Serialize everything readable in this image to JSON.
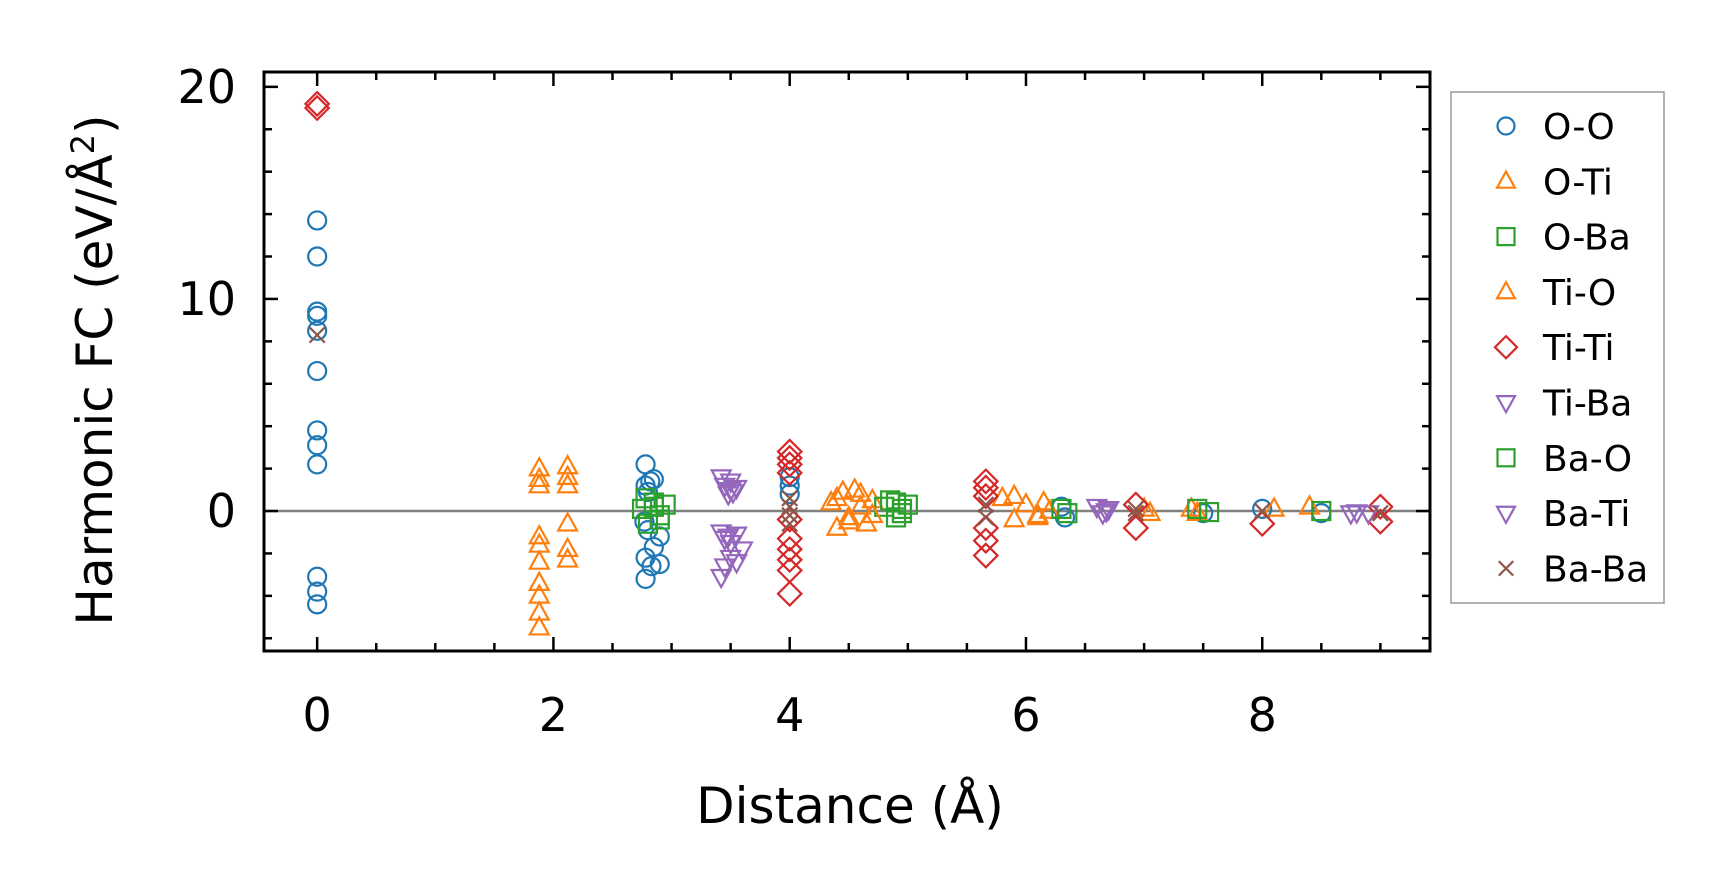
{
  "chart_data": {
    "type": "scatter",
    "xlabel": "Distance (Å)",
    "ylabel": "Harmonic FC (eV/Å",
    "ylabel_sup": "2",
    "ylabel_close": ")",
    "xlim": [
      -0.45,
      9.42
    ],
    "ylim": [
      -6.6,
      20.7
    ],
    "xticks": [
      0,
      2,
      4,
      6,
      8
    ],
    "xtick_labels": [
      "0",
      "2",
      "4",
      "6",
      "8"
    ],
    "yticks": [
      0,
      10,
      20
    ],
    "ytick_labels": [
      "0",
      "10",
      "20"
    ],
    "grid": false,
    "zero_line": true,
    "legend_position": "outside right",
    "series": [
      {
        "name": "O-O",
        "marker": "circle",
        "color": "#1f77b4",
        "points": [
          [
            0,
            13.7
          ],
          [
            0,
            12.0
          ],
          [
            0,
            9.4
          ],
          [
            0,
            9.2
          ],
          [
            0,
            8.5
          ],
          [
            0,
            6.6
          ],
          [
            0,
            3.8
          ],
          [
            0,
            3.1
          ],
          [
            0,
            2.2
          ],
          [
            0,
            -3.1
          ],
          [
            0,
            -3.8
          ],
          [
            0,
            -4.4
          ],
          [
            2.78,
            2.2
          ],
          [
            2.78,
            1.2
          ],
          [
            2.8,
            0.9
          ],
          [
            2.82,
            1.4
          ],
          [
            2.85,
            1.5
          ],
          [
            2.77,
            -0.5
          ],
          [
            2.8,
            -0.9
          ],
          [
            2.85,
            -1.7
          ],
          [
            2.9,
            -1.2
          ],
          [
            2.78,
            -2.2
          ],
          [
            2.83,
            -2.6
          ],
          [
            2.78,
            -3.2
          ],
          [
            2.9,
            -2.5
          ],
          [
            4.0,
            1.6
          ],
          [
            4.0,
            1.2
          ],
          [
            4.0,
            0.8
          ],
          [
            6.3,
            0.2
          ],
          [
            6.33,
            -0.3
          ],
          [
            7.5,
            -0.1
          ],
          [
            8.0,
            0.1
          ],
          [
            8.5,
            -0.1
          ]
        ]
      },
      {
        "name": "O-Ti",
        "marker": "triangle-up",
        "color": "#ff7f0e",
        "points": [
          [
            1.88,
            2.0
          ],
          [
            1.88,
            1.5
          ],
          [
            1.88,
            1.2
          ],
          [
            1.88,
            -1.2
          ],
          [
            1.88,
            -1.6
          ],
          [
            1.88,
            -2.4
          ],
          [
            1.88,
            -3.4
          ],
          [
            1.88,
            -4.0
          ],
          [
            1.88,
            -4.8
          ],
          [
            1.88,
            -5.5
          ],
          [
            2.12,
            2.1
          ],
          [
            2.12,
            1.6
          ],
          [
            2.12,
            1.2
          ],
          [
            2.12,
            -0.6
          ],
          [
            2.12,
            -1.8
          ],
          [
            2.12,
            -2.3
          ],
          [
            4.35,
            0.4
          ],
          [
            4.4,
            -0.8
          ],
          [
            4.45,
            0.9
          ],
          [
            4.5,
            -0.3
          ],
          [
            4.55,
            1.0
          ],
          [
            4.6,
            0.2
          ],
          [
            4.65,
            -0.6
          ],
          [
            4.7,
            0.5
          ],
          [
            5.8,
            0.6
          ],
          [
            5.9,
            -0.4
          ],
          [
            6.0,
            0.3
          ],
          [
            6.1,
            -0.2
          ],
          [
            6.15,
            0.4
          ],
          [
            6.2,
            0.0
          ],
          [
            7.0,
            0.1
          ],
          [
            7.05,
            -0.1
          ],
          [
            7.4,
            0.1
          ],
          [
            7.45,
            -0.1
          ],
          [
            8.1,
            0.1
          ],
          [
            8.4,
            0.2
          ]
        ]
      },
      {
        "name": "O-Ba",
        "marker": "square",
        "color": "#2ca02c",
        "points": [
          [
            2.75,
            0.1
          ],
          [
            2.8,
            -0.6
          ],
          [
            2.85,
            0.4
          ],
          [
            2.9,
            -0.2
          ],
          [
            2.95,
            0.3
          ],
          [
            2.78,
            0.6
          ],
          [
            4.8,
            0.2
          ],
          [
            4.85,
            0.5
          ],
          [
            4.9,
            -0.3
          ],
          [
            4.95,
            0.1
          ],
          [
            5.0,
            0.3
          ],
          [
            6.3,
            0.1
          ],
          [
            6.35,
            -0.1
          ],
          [
            7.45,
            0.1
          ],
          [
            7.55,
            -0.05
          ],
          [
            8.5,
            0.0
          ]
        ]
      },
      {
        "name": "Ti-O",
        "marker": "triangle-up",
        "color": "#ff7f0e",
        "points": [
          [
            4.4,
            0.6
          ],
          [
            4.5,
            -0.5
          ],
          [
            4.6,
            0.8
          ],
          [
            4.7,
            -0.2
          ],
          [
            5.9,
            0.7
          ],
          [
            6.1,
            -0.3
          ]
        ]
      },
      {
        "name": "Ti-Ti",
        "marker": "diamond",
        "color": "#d62728",
        "points": [
          [
            0,
            19.2
          ],
          [
            0,
            19.0
          ],
          [
            4.0,
            2.8
          ],
          [
            4.0,
            2.5
          ],
          [
            4.0,
            2.2
          ],
          [
            4.0,
            1.8
          ],
          [
            4.0,
            -0.4
          ],
          [
            4.0,
            -1.3
          ],
          [
            4.0,
            -1.8
          ],
          [
            4.0,
            -2.3
          ],
          [
            4.0,
            -2.8
          ],
          [
            4.0,
            -3.9
          ],
          [
            5.66,
            1.4
          ],
          [
            5.66,
            1.1
          ],
          [
            5.66,
            0.7
          ],
          [
            5.66,
            -0.8
          ],
          [
            5.66,
            -1.4
          ],
          [
            5.66,
            -2.1
          ],
          [
            6.93,
            0.3
          ],
          [
            6.93,
            -0.8
          ],
          [
            8.0,
            -0.6
          ],
          [
            9.0,
            0.2
          ],
          [
            9.0,
            -0.5
          ]
        ]
      },
      {
        "name": "Ti-Ba",
        "marker": "triangle-down",
        "color": "#9467bd",
        "points": [
          [
            3.42,
            1.6
          ],
          [
            3.45,
            1.2
          ],
          [
            3.48,
            0.8
          ],
          [
            3.5,
            1.4
          ],
          [
            3.52,
            0.9
          ],
          [
            3.55,
            1.1
          ],
          [
            3.42,
            -1.0
          ],
          [
            3.45,
            -1.3
          ],
          [
            3.5,
            -1.5
          ],
          [
            3.55,
            -1.1
          ],
          [
            3.6,
            -1.8
          ],
          [
            3.5,
            -2.2
          ],
          [
            3.45,
            -2.6
          ],
          [
            3.42,
            -3.1
          ],
          [
            3.55,
            -2.4
          ],
          [
            6.6,
            0.2
          ],
          [
            6.65,
            -0.1
          ],
          [
            6.7,
            0.1
          ],
          [
            8.75,
            -0.1
          ],
          [
            8.9,
            -0.1
          ]
        ]
      },
      {
        "name": "Ba-O",
        "marker": "square",
        "color": "#2ca02c",
        "points": [
          [
            2.85,
            0.2
          ],
          [
            2.9,
            -0.4
          ],
          [
            4.9,
            0.4
          ],
          [
            4.95,
            -0.1
          ]
        ]
      },
      {
        "name": "Ba-Ti",
        "marker": "triangle-down",
        "color": "#9467bd",
        "points": [
          [
            3.5,
            1.0
          ],
          [
            3.48,
            -1.2
          ],
          [
            6.68,
            0.0
          ],
          [
            8.8,
            -0.05
          ]
        ]
      },
      {
        "name": "Ba-Ba",
        "marker": "x",
        "color": "#8c564b",
        "points": [
          [
            0,
            8.3
          ],
          [
            4.0,
            0.6
          ],
          [
            4.0,
            0.2
          ],
          [
            4.0,
            -0.2
          ],
          [
            4.0,
            -0.6
          ],
          [
            5.66,
            0.3
          ],
          [
            5.66,
            -0.3
          ],
          [
            6.93,
            0.1
          ],
          [
            6.93,
            -0.1
          ],
          [
            8.0,
            0.0
          ],
          [
            9.0,
            -0.1
          ]
        ]
      }
    ]
  }
}
